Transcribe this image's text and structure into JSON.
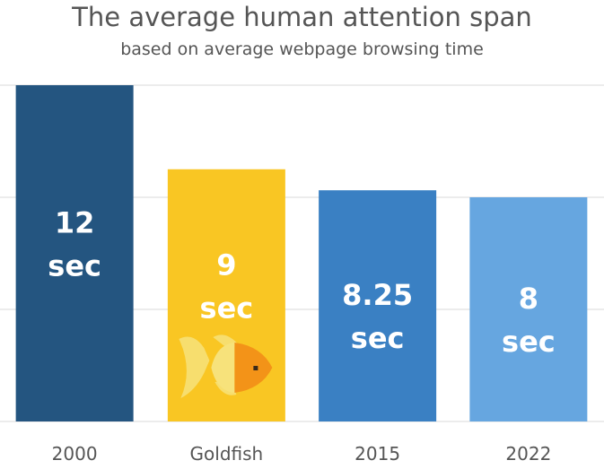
{
  "colors": {
    "background": "#ffffff",
    "gridline": "#d9d9d9",
    "text": "#555555",
    "bar_label": "#ffffff"
  },
  "chart_data": {
    "type": "bar",
    "title": "The average human attention span",
    "subtitle": "based on average webpage browsing time",
    "categories": [
      "2000",
      "Goldfish",
      "2015",
      "2022"
    ],
    "values": [
      12,
      9,
      8.25,
      8
    ],
    "value_labels": [
      [
        "12",
        "sec"
      ],
      [
        "9",
        "sec"
      ],
      [
        "8.25",
        "sec"
      ],
      [
        "8",
        "sec"
      ]
    ],
    "bar_colors": [
      "#245580",
      "#f9c623",
      "#3a80c3",
      "#66a6e0"
    ],
    "ylim": [
      0,
      12
    ],
    "grid": true,
    "gridline_values": [
      0,
      4,
      8,
      12
    ],
    "y_tick_labels_shown": false,
    "legend": "none",
    "annotations": [
      {
        "category": "Goldfish",
        "icon": "goldfish-icon",
        "colors": [
          "#f7e27b",
          "#f39318"
        ]
      }
    ]
  }
}
